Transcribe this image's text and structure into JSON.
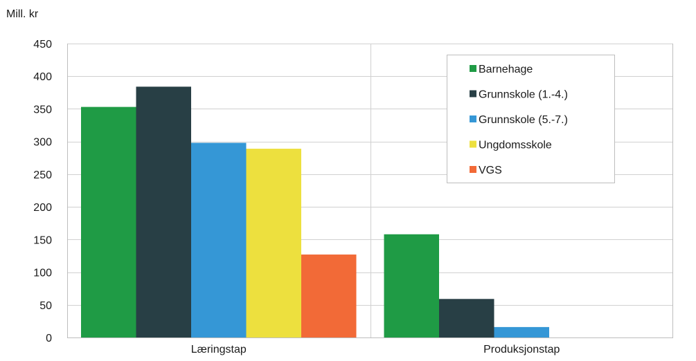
{
  "chart_data": {
    "type": "bar",
    "ylabel": "Mill. kr",
    "ylim": [
      0,
      450
    ],
    "yticks": [
      0,
      50,
      100,
      150,
      200,
      250,
      300,
      350,
      400,
      450
    ],
    "grid": true,
    "legend_position": "top-right",
    "categories": [
      "Læringstap",
      "Produksjonstap"
    ],
    "series": [
      {
        "name": "Barnehage",
        "color": "#1f9b45",
        "values": [
          353,
          158
        ]
      },
      {
        "name": "Grunnskole (1.-4.)",
        "color": "#283f45",
        "values": [
          384,
          59
        ]
      },
      {
        "name": "Grunnskole (5.-7.)",
        "color": "#3597d6",
        "values": [
          298,
          16
        ]
      },
      {
        "name": "Ungdomsskole",
        "color": "#ede03e",
        "values": [
          289,
          0
        ]
      },
      {
        "name": "VGS",
        "color": "#f26a37",
        "values": [
          127,
          0
        ]
      }
    ]
  }
}
